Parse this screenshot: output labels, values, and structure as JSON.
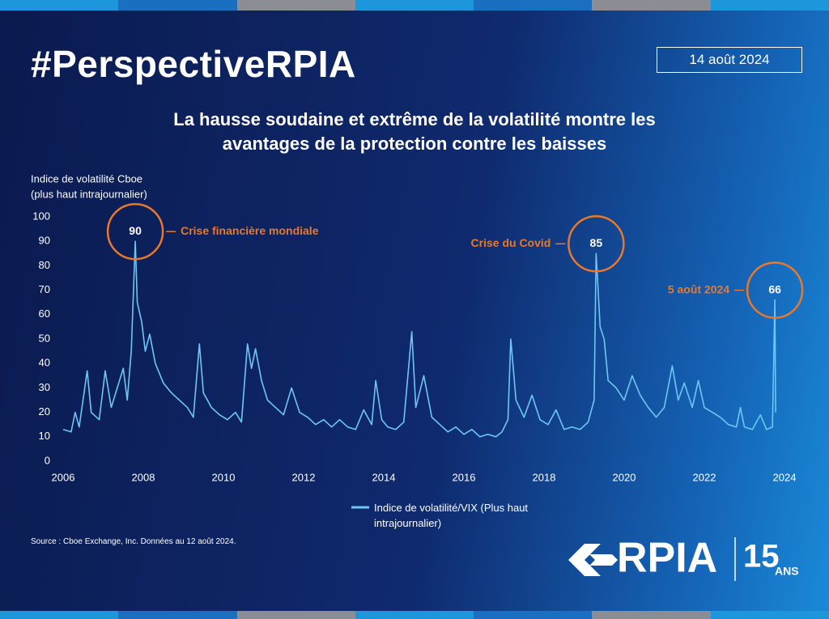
{
  "header": {
    "hashtag": "#PerspectiveRPIA",
    "date": "14 août 2024"
  },
  "chart_data": {
    "type": "line",
    "title": "La hausse soudaine et extrême de la volatilité montre les avantages de la protection contre les baisses",
    "ylabel": [
      "Indice de volatilité Cboe",
      "(plus haut intrajournalier)"
    ],
    "xlim": [
      2006,
      2024
    ],
    "xticks": [
      2006,
      2008,
      2010,
      2012,
      2014,
      2016,
      2018,
      2020,
      2022,
      2024
    ],
    "ylim": [
      0,
      100
    ],
    "yticks": [
      0,
      10,
      20,
      30,
      40,
      50,
      60,
      70,
      80,
      90,
      100
    ],
    "grid": false,
    "x": [
      2006.0,
      2006.2,
      2006.3,
      2006.4,
      2006.6,
      2006.7,
      2006.9,
      2007.05,
      2007.2,
      2007.35,
      2007.5,
      2007.6,
      2007.7,
      2007.8,
      2007.85,
      2007.96,
      2008.05,
      2008.16,
      2008.3,
      2008.5,
      2008.7,
      2008.9,
      2009.1,
      2009.25,
      2009.4,
      2009.5,
      2009.7,
      2009.9,
      2010.1,
      2010.3,
      2010.45,
      2010.6,
      2010.7,
      2010.8,
      2010.95,
      2011.1,
      2011.3,
      2011.5,
      2011.7,
      2011.9,
      2012.1,
      2012.3,
      2012.5,
      2012.7,
      2012.9,
      2013.1,
      2013.3,
      2013.5,
      2013.7,
      2013.8,
      2013.95,
      2014.1,
      2014.3,
      2014.5,
      2014.7,
      2014.8,
      2015.0,
      2015.2,
      2015.4,
      2015.6,
      2015.8,
      2016.0,
      2016.2,
      2016.4,
      2016.6,
      2016.8,
      2016.95,
      2017.1,
      2017.17,
      2017.3,
      2017.5,
      2017.7,
      2017.9,
      2018.1,
      2018.3,
      2018.5,
      2018.7,
      2018.9,
      2019.1,
      2019.25,
      2019.3,
      2019.4,
      2019.5,
      2019.6,
      2019.8,
      2020.0,
      2020.2,
      2020.4,
      2020.6,
      2020.8,
      2021.0,
      2021.2,
      2021.35,
      2021.5,
      2021.7,
      2021.85,
      2022.0,
      2022.2,
      2022.4,
      2022.6,
      2022.8,
      2022.9,
      2023.0,
      2023.2,
      2023.4,
      2023.55,
      2023.7,
      2023.76,
      2023.78
    ],
    "series": [
      {
        "name": "Indice de volatilité/VIX (Plus haut intrajournalier)",
        "color": "#6ec6f5",
        "values": [
          13,
          12,
          20,
          14,
          37,
          20,
          17,
          37,
          22,
          30,
          38,
          25,
          45,
          90,
          65,
          57,
          45,
          52,
          40,
          32,
          28,
          25,
          22,
          18,
          48,
          28,
          22,
          19,
          17,
          20,
          16,
          48,
          38,
          46,
          33,
          25,
          22,
          19,
          30,
          20,
          18,
          15,
          17,
          14,
          17,
          14,
          13,
          21,
          15,
          33,
          17,
          14,
          13,
          16,
          53,
          22,
          35,
          18,
          15,
          12,
          14,
          11,
          13,
          10,
          11,
          10,
          12,
          17,
          50,
          25,
          18,
          27,
          17,
          15,
          21,
          13,
          14,
          13,
          16,
          25,
          85,
          55,
          50,
          33,
          30,
          25,
          35,
          27,
          22,
          18,
          22,
          39,
          25,
          32,
          22,
          33,
          22,
          20,
          18,
          15,
          14,
          22,
          14,
          13,
          19,
          13,
          14,
          66,
          20
        ]
      }
    ],
    "annotations": [
      {
        "text": "Crise financière mondiale",
        "label": "90",
        "x": 2007.8,
        "y": 90
      },
      {
        "text": "Crise du Covid",
        "label": "85",
        "x": 2019.3,
        "y": 85
      },
      {
        "text": "5 août 2024",
        "label": "66",
        "x": 2023.76,
        "y": 66
      }
    ],
    "annotation_color": "#e8792b",
    "source": "Source : Cboe Exchange, Inc. Données au 12 août 2024."
  },
  "logo": {
    "name": "RPIA",
    "years": "15",
    "unit": "ANS"
  }
}
